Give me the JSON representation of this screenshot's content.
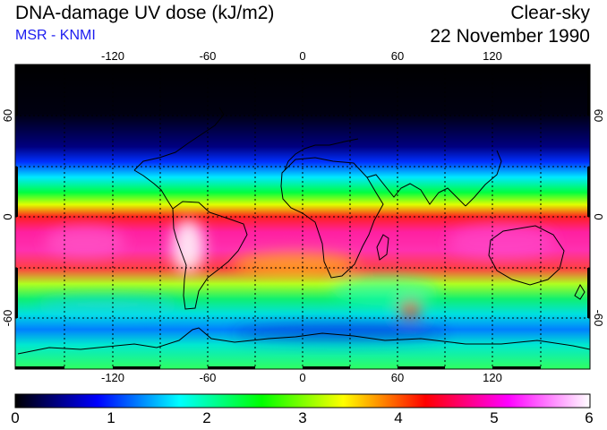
{
  "header": {
    "title": "DNA-damage UV dose (kJ/m2)",
    "subtitle": "MSR - KNMI",
    "subtitle_color": "#1c1cf0",
    "scenario": "Clear-sky",
    "date": "22 November 1990"
  },
  "map": {
    "projection": "equirectangular",
    "lon_range": [
      -180,
      180
    ],
    "lat_range": [
      -90,
      90
    ],
    "grid": true,
    "lon_ticks": [
      {
        "value": -120,
        "label": "-120"
      },
      {
        "value": -60,
        "label": "-60"
      },
      {
        "value": 0,
        "label": "0"
      },
      {
        "value": 60,
        "label": "60"
      },
      {
        "value": 120,
        "label": "120"
      }
    ],
    "lat_ticks": [
      {
        "value": 60,
        "label": "60"
      },
      {
        "value": 0,
        "label": "0"
      },
      {
        "value": -60,
        "label": "-60"
      }
    ]
  },
  "colorbar": {
    "min": 0,
    "max": 6,
    "labels": [
      "0",
      "1",
      "2",
      "3",
      "4",
      "5",
      "6"
    ],
    "colors": [
      "#000000",
      "#0000ff",
      "#00ffff",
      "#00ff00",
      "#ffff00",
      "#ff0000",
      "#ff00ff",
      "#ffffff"
    ]
  }
}
